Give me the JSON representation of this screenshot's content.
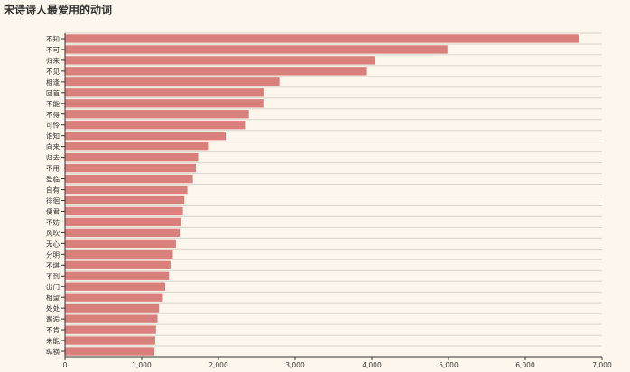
{
  "chart_data": {
    "type": "bar",
    "orientation": "horizontal",
    "title": "宋诗诗人最爱用的动词",
    "xlabel": "",
    "ylabel": "",
    "xlim": [
      0,
      7000
    ],
    "xticks": [
      0,
      1000,
      2000,
      3000,
      4000,
      5000,
      6000,
      7000
    ],
    "xtick_labels": [
      "0",
      "1,000",
      "2,000",
      "3,000",
      "4,000",
      "5,000",
      "6,000",
      "7,000"
    ],
    "grid": "horizontal",
    "colors": {
      "bar": "#d9807c",
      "background": "#fdf6ec",
      "grid": "#d8d4ca",
      "axis": "#333333"
    },
    "categories": [
      "不知",
      "不可",
      "归来",
      "不见",
      "相逢",
      "回首",
      "不能",
      "不得",
      "可怜",
      "谁知",
      "向来",
      "归去",
      "不用",
      "登临",
      "自有",
      "徘徊",
      "便君",
      "不妨",
      "风吹",
      "无心",
      "分明",
      "不堪",
      "不到",
      "出门",
      "相望",
      "处处",
      "邂逅",
      "不肯",
      "未能",
      "纵横"
    ],
    "values": [
      6700,
      4980,
      4040,
      3930,
      2790,
      2590,
      2580,
      2390,
      2340,
      2090,
      1870,
      1730,
      1700,
      1660,
      1590,
      1550,
      1530,
      1510,
      1490,
      1440,
      1400,
      1370,
      1350,
      1300,
      1270,
      1220,
      1200,
      1180,
      1170,
      1160
    ]
  }
}
